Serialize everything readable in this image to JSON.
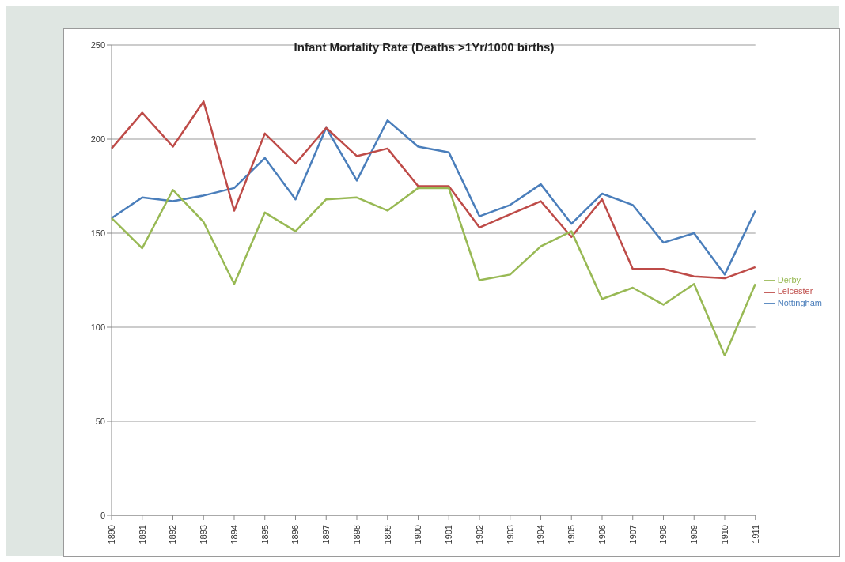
{
  "chart_data": {
    "type": "line",
    "title": "Infant Mortality Rate (Deaths >1Yr/1000 births)",
    "categories": [
      "1890",
      "1891",
      "1892",
      "1893",
      "1894",
      "1895",
      "1896",
      "1897",
      "1898",
      "1899",
      "1900",
      "1901",
      "1902",
      "1903",
      "1904",
      "1905",
      "1906",
      "1907",
      "1908",
      "1909",
      "1910",
      "1911"
    ],
    "series": [
      {
        "name": "Nottingham",
        "color": "#4a7ebb",
        "values": [
          158,
          169,
          167,
          170,
          174,
          190,
          168,
          206,
          178,
          210,
          196,
          193,
          159,
          165,
          176,
          155,
          171,
          165,
          145,
          150,
          128,
          162
        ]
      },
      {
        "name": "Leicester",
        "color": "#be4b48",
        "values": [
          195,
          214,
          196,
          220,
          162,
          203,
          187,
          206,
          191,
          195,
          175,
          175,
          153,
          160,
          167,
          148,
          168,
          131,
          131,
          127,
          126,
          132
        ]
      },
      {
        "name": "Derby",
        "color": "#98b954",
        "values": [
          158,
          142,
          173,
          156,
          123,
          161,
          151,
          168,
          169,
          162,
          174,
          174,
          125,
          128,
          143,
          151,
          115,
          121,
          112,
          123,
          85,
          123
        ]
      }
    ],
    "ylim": [
      0,
      250
    ],
    "yticks": [
      0,
      50,
      100,
      150,
      200,
      250
    ],
    "grid": "y",
    "legend": "right",
    "marker": "none",
    "line_style": "solid"
  }
}
